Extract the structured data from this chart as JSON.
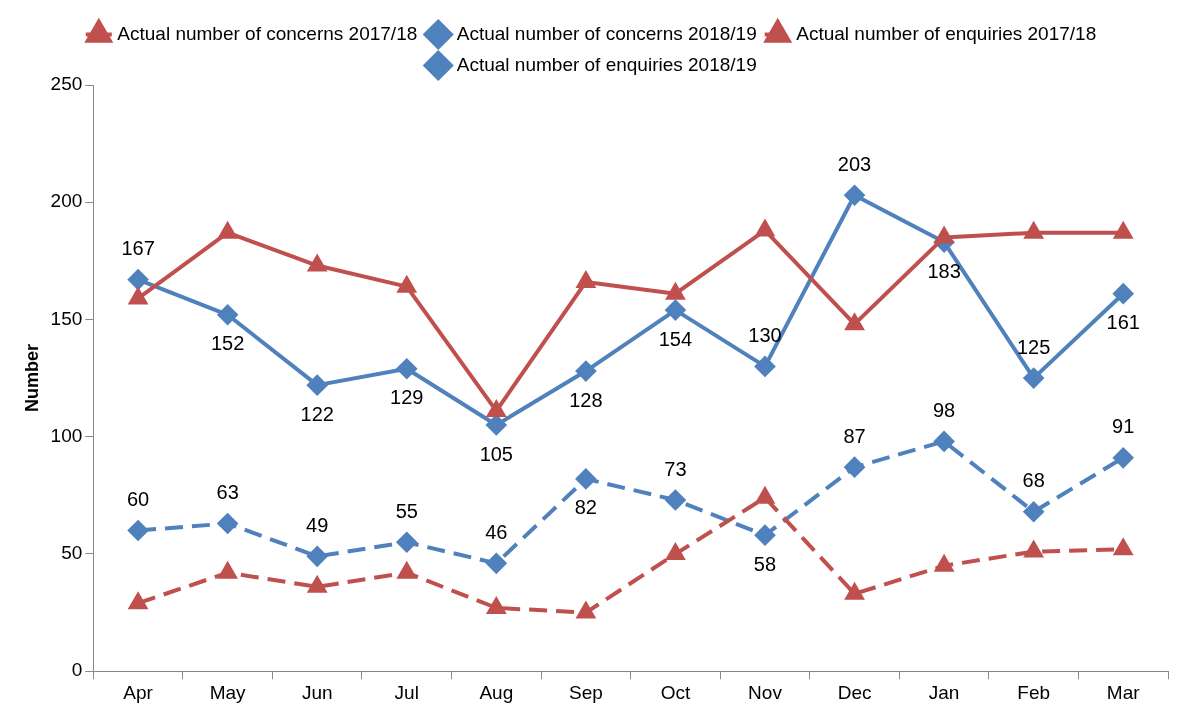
{
  "chart_data": {
    "type": "line",
    "ylabel": "Number",
    "categories": [
      "Apr",
      "May",
      "Jun",
      "Jul",
      "Aug",
      "Sep",
      "Oct",
      "Nov",
      "Dec",
      "Jan",
      "Feb",
      "Mar"
    ],
    "ylim": [
      0,
      250
    ],
    "yticks": [
      0,
      50,
      100,
      150,
      200,
      250
    ],
    "grid": false,
    "legend": "top",
    "series": [
      {
        "name": "Actual number of concerns 2017/18",
        "color": "#c0504d",
        "marker": "triangle",
        "line_style": "solid",
        "values": [
          159,
          187,
          173,
          164,
          111,
          166,
          161,
          188,
          148,
          185,
          187,
          187
        ]
      },
      {
        "name": "Actual number of concerns 2018/19",
        "color": "#4f81bd",
        "marker": "diamond",
        "line_style": "solid",
        "values": [
          167,
          152,
          122,
          129,
          105,
          128,
          154,
          130,
          203,
          183,
          125,
          161
        ],
        "value_labels": [
          "167",
          "152",
          "122",
          "129",
          "105",
          "128",
          "154",
          "130",
          "203",
          "183",
          "125",
          "161"
        ]
      },
      {
        "name": "Actual number of enquiries 2017/18",
        "color": "#c0504d",
        "marker": "triangle",
        "line_style": "dashed",
        "values": [
          29,
          42,
          36,
          42,
          27,
          25,
          50,
          74,
          33,
          45,
          51,
          52
        ]
      },
      {
        "name": "Actual number of enquiries 2018/19",
        "color": "#4f81bd",
        "marker": "diamond",
        "line_style": "dashed",
        "values": [
          60,
          63,
          49,
          55,
          46,
          82,
          73,
          58,
          87,
          98,
          68,
          91
        ],
        "value_labels": [
          "60",
          "63",
          "49",
          "55",
          "46",
          "82",
          "73",
          "58",
          "87",
          "98",
          "68",
          "91"
        ]
      }
    ]
  }
}
